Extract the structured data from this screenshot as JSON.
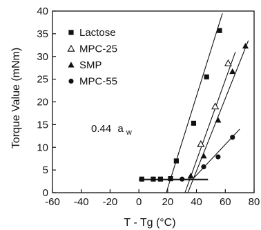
{
  "chart_data": {
    "type": "scatter",
    "xlabel": "T - Tg (°C)",
    "ylabel": "Torque Value (mNm)",
    "xlim": [
      -60,
      80
    ],
    "ylim": [
      0,
      40
    ],
    "xticks": [
      "-60",
      "-40",
      "-20",
      "0",
      "20",
      "40",
      "60",
      "80"
    ],
    "yticks": [
      "0",
      "5",
      "10",
      "15",
      "20",
      "25",
      "30",
      "35",
      "40"
    ],
    "grid": false,
    "legend_position": "top-left",
    "annotation": {
      "value": "0.44",
      "unit": "a",
      "subscript": "w"
    },
    "series": [
      {
        "name": "Lactose",
        "marker": "square",
        "points": [
          {
            "x": 2,
            "y": 3.0
          },
          {
            "x": 10,
            "y": 3.0
          },
          {
            "x": 15,
            "y": 3.0
          },
          {
            "x": 22,
            "y": 3.1
          },
          {
            "x": 26,
            "y": 7.0
          },
          {
            "x": 38,
            "y": 15.3
          },
          {
            "x": 47,
            "y": 25.5
          },
          {
            "x": 56,
            "y": 35.7
          }
        ],
        "fit_lines": [
          {
            "x": [
              0,
              48
            ],
            "y": [
              3.0,
              3.0
            ]
          },
          {
            "x": [
              19,
              58
            ],
            "y": [
              0,
              39.5
            ]
          }
        ]
      },
      {
        "name": "MPC-25",
        "marker": "triangle-open",
        "points": [
          {
            "x": 43,
            "y": 10.7
          },
          {
            "x": 53,
            "y": 19.0
          },
          {
            "x": 62,
            "y": 28.5
          }
        ],
        "fit_lines": [
          {
            "x": [
              32,
              67
            ],
            "y": [
              0,
              31.0
            ]
          }
        ]
      },
      {
        "name": "SMP",
        "marker": "triangle-filled",
        "points": [
          {
            "x": 36,
            "y": 3.7
          },
          {
            "x": 45,
            "y": 8.1
          },
          {
            "x": 55,
            "y": 16.0
          },
          {
            "x": 65,
            "y": 26.7
          },
          {
            "x": 74,
            "y": 32.3
          }
        ],
        "fit_lines": [
          {
            "x": [
              34,
              76
            ],
            "y": [
              0,
              33.5
            ]
          }
        ]
      },
      {
        "name": "MPC-55",
        "marker": "circle",
        "points": [
          {
            "x": 30,
            "y": 3.0
          },
          {
            "x": 45,
            "y": 5.7
          },
          {
            "x": 55,
            "y": 7.9
          },
          {
            "x": 65,
            "y": 12.2
          }
        ],
        "fit_lines": [
          {
            "x": [
              0,
              48
            ],
            "y": [
              2.8,
              2.8
            ]
          },
          {
            "x": [
              38,
              70
            ],
            "y": [
              3.2,
              14.0
            ]
          }
        ]
      }
    ]
  },
  "colors": {
    "foreground": "#111111",
    "background": "#ffffff"
  }
}
